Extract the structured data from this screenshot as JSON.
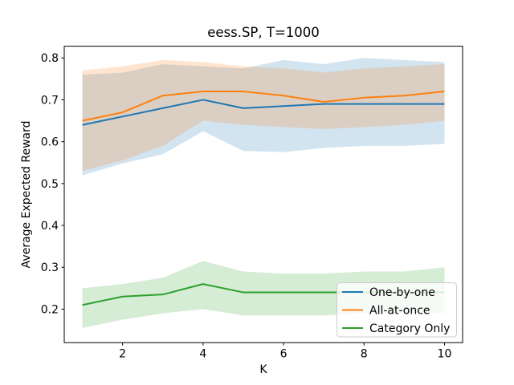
{
  "chart_data": {
    "type": "line",
    "title": "eess.SP, T=1000",
    "xlabel": "K",
    "ylabel": "Average Expected Reward",
    "x": [
      1,
      2,
      3,
      4,
      5,
      6,
      7,
      8,
      9,
      10
    ],
    "xlim": [
      0.55,
      10.45
    ],
    "ylim": [
      0.12,
      0.828
    ],
    "grid": false,
    "xticks": {
      "values": [
        2,
        4,
        6,
        8,
        10
      ],
      "labels": [
        "2",
        "4",
        "6",
        "8",
        "10"
      ]
    },
    "yticks": {
      "values": [
        0.2,
        0.3,
        0.4,
        0.5,
        0.6,
        0.7,
        0.8
      ],
      "labels": [
        "0.2",
        "0.3",
        "0.4",
        "0.5",
        "0.6",
        "0.7",
        "0.8"
      ]
    },
    "band_opacity": 0.2,
    "legend": {
      "position": "lower right"
    },
    "series": [
      {
        "name": "One-by-one",
        "color": "#1f77b4",
        "values": [
          0.64,
          0.66,
          0.68,
          0.7,
          0.68,
          0.685,
          0.69,
          0.69,
          0.69,
          0.69
        ],
        "band_upper": [
          0.76,
          0.765,
          0.785,
          0.78,
          0.775,
          0.795,
          0.785,
          0.8,
          0.795,
          0.79
        ],
        "band_lower": [
          0.52,
          0.548,
          0.57,
          0.625,
          0.578,
          0.575,
          0.585,
          0.59,
          0.59,
          0.595
        ]
      },
      {
        "name": "All-at-once",
        "color": "#ff7f0e",
        "values": [
          0.65,
          0.67,
          0.71,
          0.72,
          0.72,
          0.71,
          0.695,
          0.705,
          0.71,
          0.72
        ],
        "band_upper": [
          0.77,
          0.78,
          0.795,
          0.79,
          0.78,
          0.775,
          0.765,
          0.775,
          0.78,
          0.785
        ],
        "band_lower": [
          0.53,
          0.555,
          0.59,
          0.65,
          0.64,
          0.635,
          0.63,
          0.635,
          0.64,
          0.65
        ]
      },
      {
        "name": "Category Only",
        "color": "#2ca02c",
        "values": [
          0.21,
          0.23,
          0.235,
          0.26,
          0.24,
          0.24,
          0.24,
          0.24,
          0.24,
          0.24
        ],
        "band_upper": [
          0.25,
          0.26,
          0.275,
          0.315,
          0.29,
          0.285,
          0.285,
          0.29,
          0.29,
          0.3
        ],
        "band_lower": [
          0.155,
          0.175,
          0.19,
          0.2,
          0.185,
          0.185,
          0.185,
          0.19,
          0.19,
          0.19
        ]
      }
    ]
  }
}
